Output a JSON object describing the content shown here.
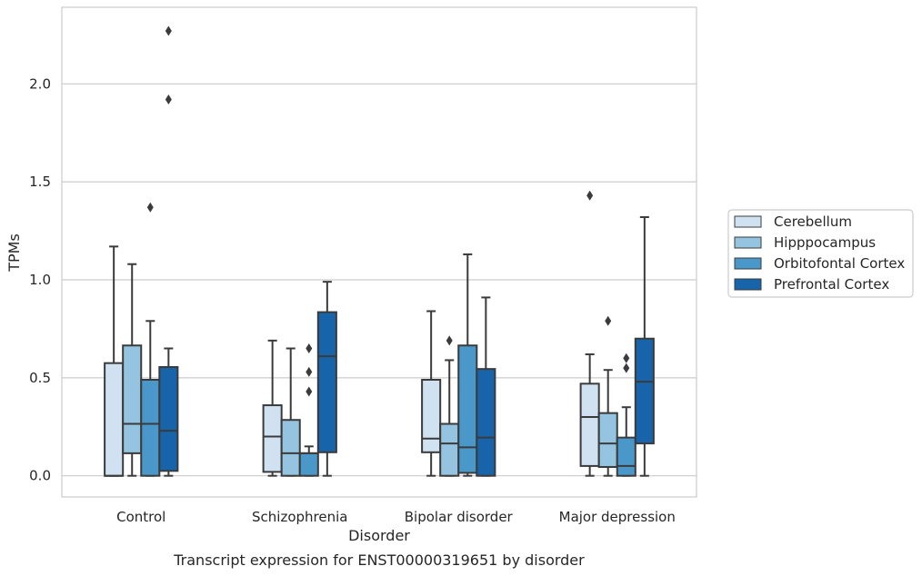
{
  "chart_data": {
    "type": "box",
    "caption": "Transcript expression for ENST00000319651 by disorder",
    "xlabel": "Disorder",
    "ylabel": "TPMs",
    "ylim": [
      -0.11,
      2.4
    ],
    "yticks": [
      0.0,
      0.5,
      1.0,
      1.5,
      2.0
    ],
    "ytick_labels": [
      "0.0",
      "0.5",
      "1.0",
      "1.5",
      "2.0"
    ],
    "grid": "horizontal",
    "legend_position": "right",
    "categories": [
      "Control",
      "Schizophrenia",
      "Bipolar disorder",
      "Major depression"
    ],
    "series": [
      {
        "name": "Cerebellum",
        "color": "#d0e1f2",
        "boxes": [
          {
            "whislo": 0.0,
            "q1": 0.0,
            "med": 0.0,
            "q3": 0.575,
            "whishi": 1.17,
            "fliers": []
          },
          {
            "whislo": 0.0,
            "q1": 0.02,
            "med": 0.2,
            "q3": 0.36,
            "whishi": 0.69,
            "fliers": []
          },
          {
            "whislo": 0.0,
            "q1": 0.12,
            "med": 0.19,
            "q3": 0.49,
            "whishi": 0.84,
            "fliers": []
          },
          {
            "whislo": 0.0,
            "q1": 0.05,
            "med": 0.3,
            "q3": 0.47,
            "whishi": 0.62,
            "fliers": [
              1.43
            ]
          }
        ]
      },
      {
        "name": "Hipppocampus",
        "color": "#94c4df",
        "boxes": [
          {
            "whislo": 0.0,
            "q1": 0.115,
            "med": 0.265,
            "q3": 0.665,
            "whishi": 1.08,
            "fliers": []
          },
          {
            "whislo": 0.0,
            "q1": 0.0,
            "med": 0.115,
            "q3": 0.285,
            "whishi": 0.65,
            "fliers": []
          },
          {
            "whislo": 0.0,
            "q1": 0.0,
            "med": 0.165,
            "q3": 0.265,
            "whishi": 0.59,
            "fliers": [
              0.69
            ]
          },
          {
            "whislo": 0.0,
            "q1": 0.045,
            "med": 0.165,
            "q3": 0.32,
            "whishi": 0.54,
            "fliers": [
              0.79
            ]
          }
        ]
      },
      {
        "name": "Orbitofontal Cortex",
        "color": "#4a98c9",
        "boxes": [
          {
            "whislo": 0.0,
            "q1": 0.0,
            "med": 0.265,
            "q3": 0.49,
            "whishi": 0.79,
            "fliers": [
              1.37
            ]
          },
          {
            "whislo": 0.0,
            "q1": 0.0,
            "med": 0.115,
            "q3": 0.115,
            "whishi": 0.15,
            "fliers": [
              0.43,
              0.53,
              0.65
            ]
          },
          {
            "whislo": 0.0,
            "q1": 0.015,
            "med": 0.145,
            "q3": 0.665,
            "whishi": 1.13,
            "fliers": []
          },
          {
            "whislo": 0.0,
            "q1": 0.0,
            "med": 0.05,
            "q3": 0.195,
            "whishi": 0.35,
            "fliers": [
              0.55,
              0.6
            ]
          }
        ]
      },
      {
        "name": "Prefrontal Cortex",
        "color": "#1764ab",
        "boxes": [
          {
            "whislo": 0.0,
            "q1": 0.025,
            "med": 0.23,
            "q3": 0.555,
            "whishi": 0.65,
            "fliers": [
              1.92,
              2.27
            ]
          },
          {
            "whislo": 0.0,
            "q1": 0.12,
            "med": 0.61,
            "q3": 0.835,
            "whishi": 0.99,
            "fliers": []
          },
          {
            "whislo": 0.0,
            "q1": 0.0,
            "med": 0.195,
            "q3": 0.545,
            "whishi": 0.91,
            "fliers": []
          },
          {
            "whislo": 0.0,
            "q1": 0.165,
            "med": 0.48,
            "q3": 0.7,
            "whishi": 1.32,
            "fliers": []
          }
        ]
      }
    ]
  }
}
